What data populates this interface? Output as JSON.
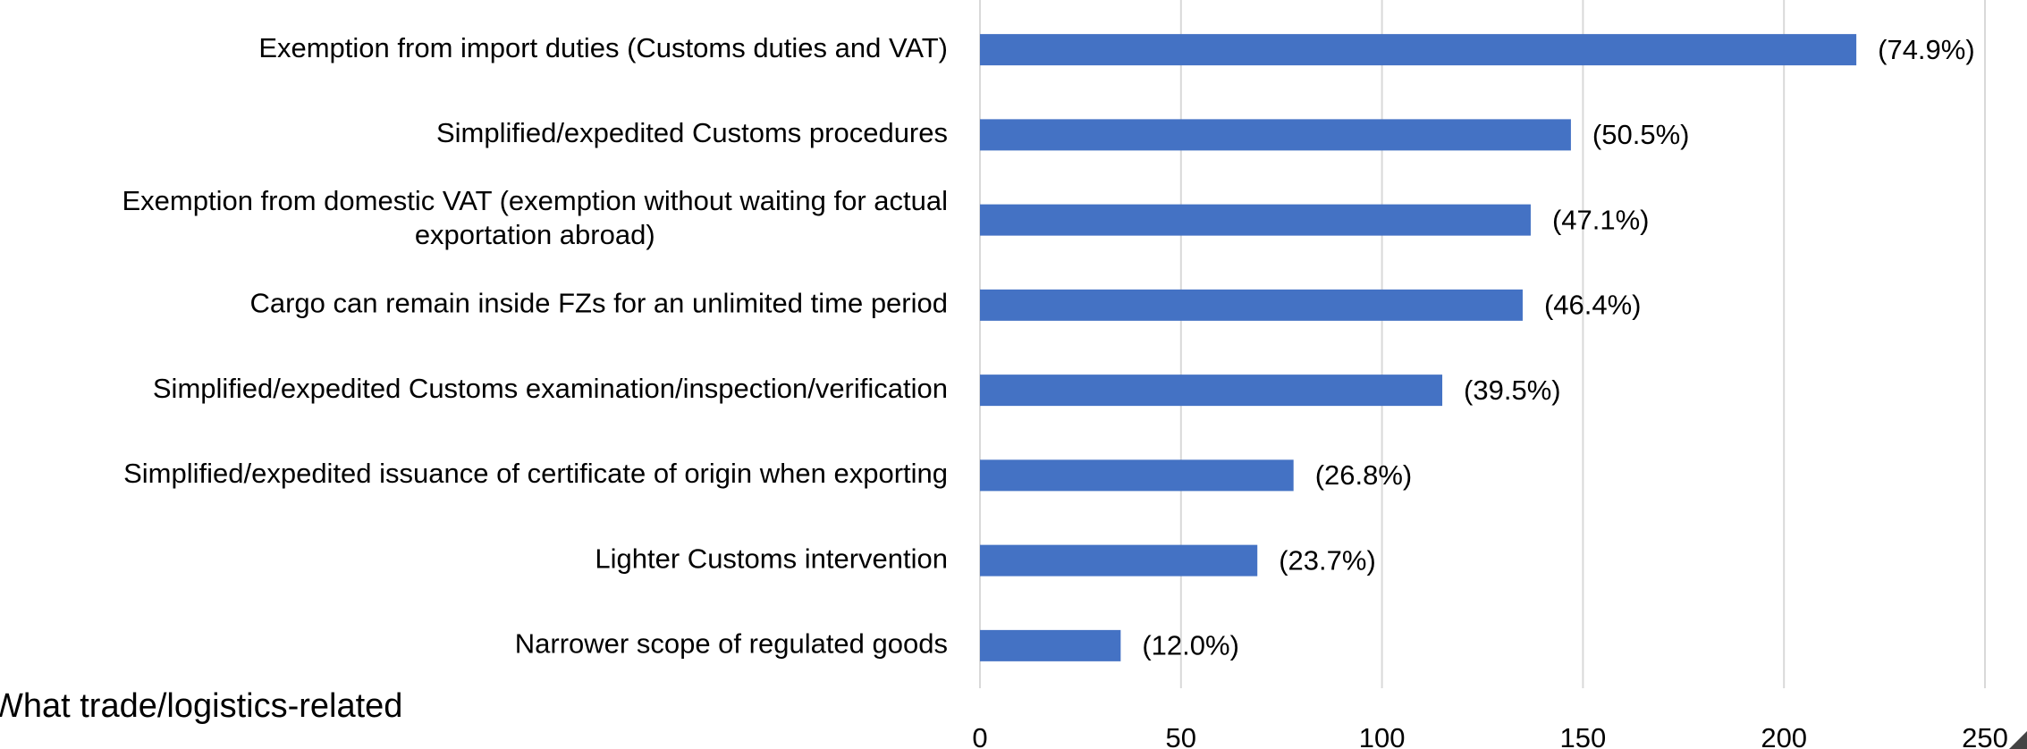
{
  "chart_data": {
    "type": "hbar",
    "categories": [
      "Exemption from import duties (Customs duties and VAT)",
      "Simplified/expedited Customs procedures",
      "Exemption from domestic VAT (exemption without waiting for actual\nexportation abroad)",
      "Cargo can remain inside FZs for an unlimited time period",
      "Simplified/expedited Customs examination/inspection/verification",
      "Simplified/expedited issuance of certificate of origin when exporting",
      "Lighter Customs intervention",
      "Narrower scope of regulated goods"
    ],
    "values": [
      218,
      147,
      137,
      135,
      115,
      78,
      69,
      35
    ],
    "value_labels": [
      "(74.9%)",
      "(50.5%)",
      "(47.1%)",
      "(46.4%)",
      "(39.5%)",
      "(26.8%)",
      "(23.7%)",
      "(12.0%)"
    ],
    "color": "#4472c4",
    "xlim": [
      0,
      250
    ],
    "xticks": [
      0,
      50,
      100,
      150,
      200,
      250
    ],
    "grid": true,
    "annotation": "What trade/logistics-related"
  }
}
